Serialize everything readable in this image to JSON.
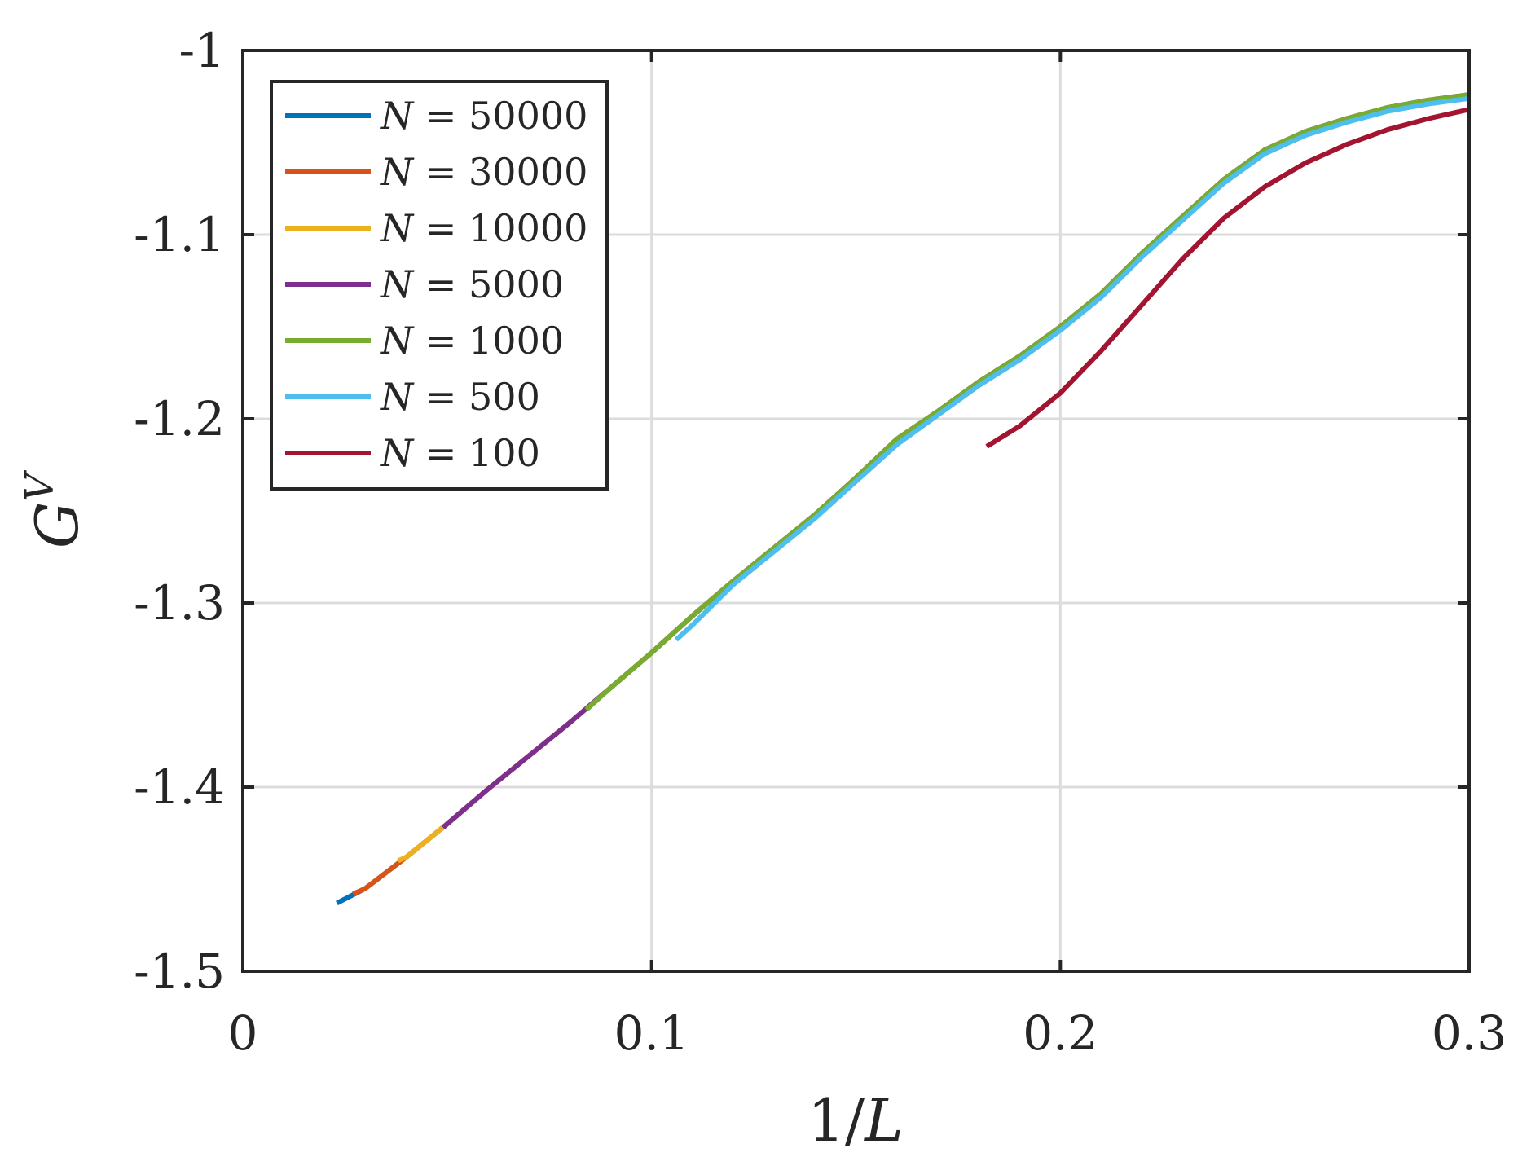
{
  "chart_data": {
    "type": "line",
    "title": "",
    "xlabel": "1/L",
    "ylabel": "G^V",
    "xlim": [
      0,
      0.3
    ],
    "ylim": [
      -1.5,
      -1
    ],
    "xticks": [
      0,
      0.1,
      0.2,
      0.3
    ],
    "xtick_labels": [
      "0",
      "0.1",
      "0.2",
      "0.3"
    ],
    "yticks": [
      -1,
      -1.1,
      -1.2,
      -1.3,
      -1.4,
      -1.5
    ],
    "ytick_labels": [
      "-1",
      "-1.1",
      "-1.2",
      "-1.3",
      "-1.4",
      "-1.5"
    ],
    "grid": true,
    "legend_position": "top-left",
    "series": [
      {
        "name": "N = 50000",
        "color": "#0072BD",
        "x": [
          0.023,
          0.03,
          0.04,
          0.05,
          0.06,
          0.07,
          0.08,
          0.09,
          0.1,
          0.11,
          0.12,
          0.13,
          0.14,
          0.15,
          0.16,
          0.17,
          0.18,
          0.19,
          0.2,
          0.21,
          0.22,
          0.23,
          0.24,
          0.25,
          0.26,
          0.27,
          0.28,
          0.29,
          0.3
        ],
        "y": [
          -1.463,
          -1.455,
          -1.438,
          -1.42,
          -1.401,
          -1.383,
          -1.365,
          -1.346,
          -1.327,
          -1.307,
          -1.288,
          -1.27,
          -1.252,
          -1.232,
          -1.211,
          -1.196,
          -1.18,
          -1.166,
          -1.15,
          -1.132,
          -1.11,
          -1.09,
          -1.07,
          -1.054,
          -1.044,
          -1.037,
          -1.031,
          -1.027,
          -1.024
        ]
      },
      {
        "name": "N = 30000",
        "color": "#D95319",
        "x": [
          0.027,
          0.03,
          0.04,
          0.05,
          0.06,
          0.07,
          0.08,
          0.09,
          0.1,
          0.11,
          0.12,
          0.13,
          0.14,
          0.15,
          0.16,
          0.17,
          0.18,
          0.19,
          0.2,
          0.21,
          0.22,
          0.23,
          0.24,
          0.25,
          0.26,
          0.27,
          0.28,
          0.29,
          0.3
        ],
        "y": [
          -1.458,
          -1.455,
          -1.438,
          -1.42,
          -1.401,
          -1.383,
          -1.365,
          -1.346,
          -1.327,
          -1.307,
          -1.288,
          -1.27,
          -1.252,
          -1.232,
          -1.211,
          -1.196,
          -1.18,
          -1.166,
          -1.15,
          -1.132,
          -1.11,
          -1.09,
          -1.07,
          -1.054,
          -1.044,
          -1.037,
          -1.031,
          -1.027,
          -1.024
        ]
      },
      {
        "name": "N = 10000",
        "color": "#EDB120",
        "x": [
          0.038,
          0.04,
          0.05,
          0.06,
          0.07,
          0.08,
          0.09,
          0.1,
          0.11,
          0.12,
          0.13,
          0.14,
          0.15,
          0.16,
          0.17,
          0.18,
          0.19,
          0.2,
          0.21,
          0.22,
          0.23,
          0.24,
          0.25,
          0.26,
          0.27,
          0.28,
          0.29,
          0.3
        ],
        "y": [
          -1.44,
          -1.438,
          -1.42,
          -1.401,
          -1.383,
          -1.365,
          -1.346,
          -1.327,
          -1.307,
          -1.288,
          -1.27,
          -1.252,
          -1.232,
          -1.211,
          -1.196,
          -1.18,
          -1.166,
          -1.15,
          -1.132,
          -1.11,
          -1.09,
          -1.07,
          -1.054,
          -1.044,
          -1.037,
          -1.031,
          -1.027,
          -1.024
        ]
      },
      {
        "name": "N = 5000",
        "color": "#7E2F8E",
        "x": [
          0.049,
          0.05,
          0.06,
          0.07,
          0.08,
          0.09,
          0.1,
          0.11,
          0.12,
          0.13,
          0.14,
          0.15,
          0.16,
          0.17,
          0.18,
          0.19,
          0.2,
          0.21,
          0.22,
          0.23,
          0.24,
          0.25,
          0.26,
          0.27,
          0.28,
          0.29,
          0.3
        ],
        "y": [
          -1.422,
          -1.42,
          -1.401,
          -1.383,
          -1.365,
          -1.346,
          -1.327,
          -1.307,
          -1.288,
          -1.27,
          -1.252,
          -1.232,
          -1.211,
          -1.196,
          -1.18,
          -1.166,
          -1.15,
          -1.132,
          -1.11,
          -1.09,
          -1.07,
          -1.054,
          -1.044,
          -1.037,
          -1.031,
          -1.027,
          -1.024
        ]
      },
      {
        "name": "N = 1000",
        "color": "#77AC30",
        "x": [
          0.084,
          0.09,
          0.1,
          0.11,
          0.12,
          0.13,
          0.14,
          0.15,
          0.16,
          0.17,
          0.18,
          0.19,
          0.2,
          0.21,
          0.22,
          0.23,
          0.24,
          0.25,
          0.26,
          0.27,
          0.28,
          0.29,
          0.3
        ],
        "y": [
          -1.358,
          -1.346,
          -1.327,
          -1.307,
          -1.288,
          -1.27,
          -1.252,
          -1.232,
          -1.211,
          -1.196,
          -1.18,
          -1.166,
          -1.15,
          -1.132,
          -1.11,
          -1.09,
          -1.07,
          -1.054,
          -1.044,
          -1.037,
          -1.031,
          -1.027,
          -1.024
        ]
      },
      {
        "name": "N = 500",
        "color": "#4DBEEE",
        "x": [
          0.106,
          0.11,
          0.12,
          0.13,
          0.14,
          0.15,
          0.16,
          0.17,
          0.18,
          0.19,
          0.2,
          0.21,
          0.22,
          0.23,
          0.24,
          0.25,
          0.26,
          0.27,
          0.28,
          0.29,
          0.3
        ],
        "y": [
          -1.32,
          -1.312,
          -1.29,
          -1.272,
          -1.254,
          -1.234,
          -1.214,
          -1.198,
          -1.182,
          -1.168,
          -1.152,
          -1.134,
          -1.112,
          -1.092,
          -1.072,
          -1.056,
          -1.046,
          -1.039,
          -1.033,
          -1.029,
          -1.026
        ]
      },
      {
        "name": "N = 100",
        "color": "#A2142F",
        "x": [
          0.182,
          0.19,
          0.2,
          0.21,
          0.22,
          0.23,
          0.24,
          0.25,
          0.26,
          0.27,
          0.28,
          0.29,
          0.3
        ],
        "y": [
          -1.215,
          -1.204,
          -1.186,
          -1.163,
          -1.138,
          -1.113,
          -1.091,
          -1.074,
          -1.061,
          -1.051,
          -1.043,
          -1.037,
          -1.032
        ]
      }
    ]
  }
}
